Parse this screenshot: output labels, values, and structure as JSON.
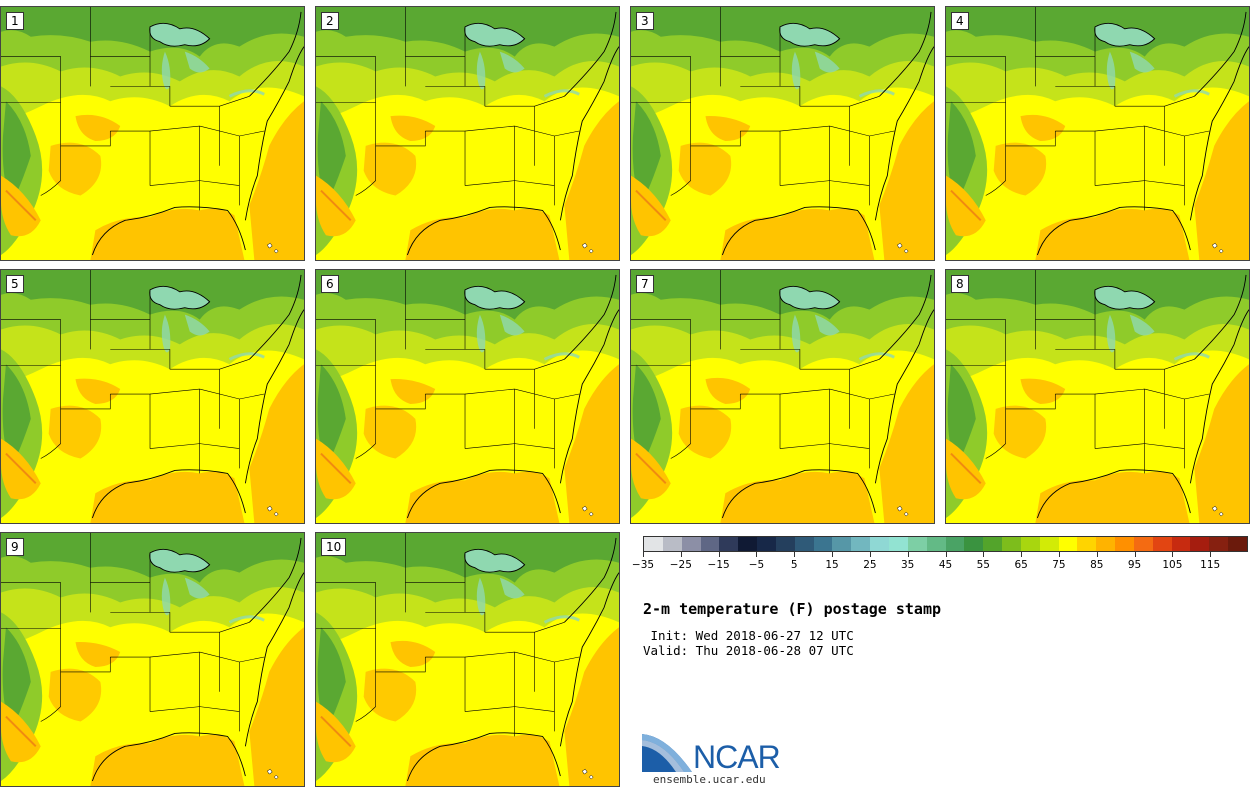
{
  "panels": [
    {
      "label": "1"
    },
    {
      "label": "2"
    },
    {
      "label": "3"
    },
    {
      "label": "4"
    },
    {
      "label": "5"
    },
    {
      "label": "6"
    },
    {
      "label": "7"
    },
    {
      "label": "8"
    },
    {
      "label": "9"
    },
    {
      "label": "10"
    }
  ],
  "colorbar": {
    "colors": [
      "#e2e4e6",
      "#b9bcc6",
      "#8c8fa6",
      "#5f6785",
      "#2f3a5a",
      "#101a34",
      "#172848",
      "#243f5d",
      "#2f5a78",
      "#3b7590",
      "#5697a7",
      "#72b7bf",
      "#8fd8d4",
      "#92e3d2",
      "#7dcfa5",
      "#63ba86",
      "#4aa365",
      "#3a9340",
      "#53a42b",
      "#7dbd1c",
      "#a8d60f",
      "#d2eb06",
      "#ffff00",
      "#ffd400",
      "#ffb300",
      "#ff9000",
      "#f46b12",
      "#e24512",
      "#c72b10",
      "#a51d0f",
      "#862010",
      "#6b1a0c"
    ],
    "tick_labels": [
      "−35",
      "−25",
      "−15",
      "−5",
      "5",
      "15",
      "25",
      "35",
      "45",
      "55",
      "65",
      "75",
      "85",
      "95",
      "105",
      "115"
    ],
    "range": [
      -35,
      125
    ]
  },
  "title": "2-m temperature (F) postage stamp",
  "init_line": " Init: Wed 2018-06-27 12 UTC",
  "valid_line": "Valid: Thu 2018-06-28 07 UTC",
  "logo_text": "NCAR",
  "site": "ensemble.ucar.edu",
  "map_colors": {
    "hot_yellow": "#ffff00",
    "warm_yellow": "#e8f200",
    "lime": "#c5e31a",
    "green": "#8fcb2a",
    "dark_green": "#5aa832",
    "orange": "#ffc400",
    "red_orange": "#f08a10",
    "lake": "#8fd8b0"
  }
}
